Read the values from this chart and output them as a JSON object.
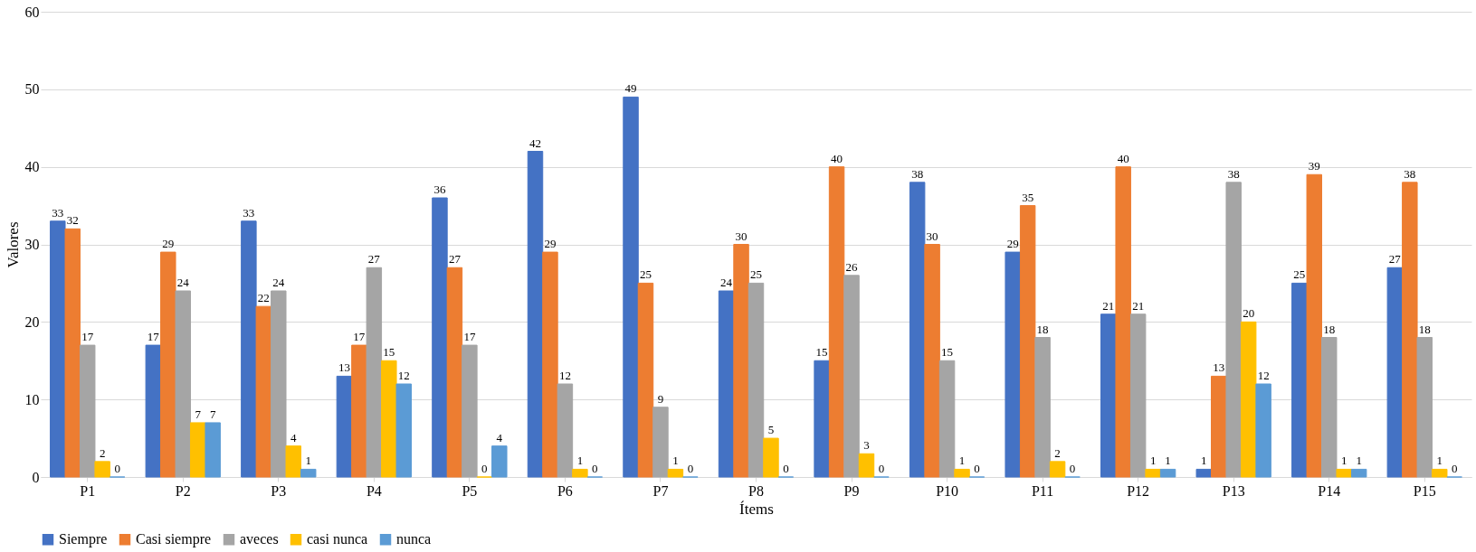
{
  "chart_data": {
    "type": "bar",
    "xlabel": "Ítems",
    "ylabel": "Valores",
    "categories": [
      "P1",
      "P2",
      "P3",
      "P4",
      "P5",
      "P6",
      "P7",
      "P8",
      "P9",
      "P10",
      "P11",
      "P12",
      "P13",
      "P14",
      "P15"
    ],
    "series": [
      {
        "name": "Siempre",
        "color": "#4472c4",
        "values": [
          33,
          17,
          33,
          13,
          36,
          42,
          49,
          24,
          15,
          38,
          29,
          21,
          1,
          25,
          27
        ]
      },
      {
        "name": "Casi siempre",
        "color": "#ed7d31",
        "values": [
          32,
          29,
          22,
          17,
          27,
          29,
          25,
          30,
          40,
          30,
          35,
          40,
          13,
          39,
          38
        ]
      },
      {
        "name": "aveces",
        "color": "#a5a5a5",
        "values": [
          17,
          24,
          24,
          27,
          17,
          12,
          9,
          25,
          26,
          15,
          18,
          21,
          38,
          18,
          18
        ]
      },
      {
        "name": "casi nunca",
        "color": "#ffc000",
        "values": [
          2,
          7,
          4,
          15,
          0,
          1,
          1,
          5,
          3,
          1,
          2,
          1,
          20,
          1,
          1
        ]
      },
      {
        "name": "nunca",
        "color": "#5b9bd5",
        "values": [
          0,
          7,
          1,
          12,
          4,
          0,
          0,
          0,
          0,
          0,
          0,
          1,
          12,
          1,
          0
        ]
      }
    ],
    "ylim": [
      0,
      60
    ],
    "yticks": [
      0,
      10,
      20,
      30,
      40,
      50,
      60
    ],
    "grid": "y",
    "legend": "bottom",
    "data_labels": true
  }
}
